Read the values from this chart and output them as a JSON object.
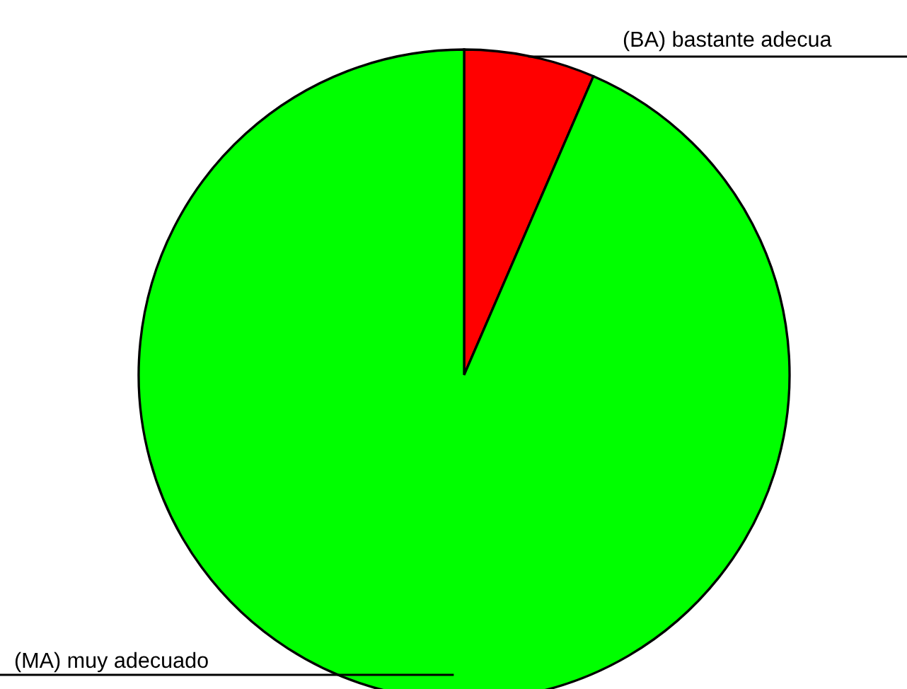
{
  "chart_data": {
    "type": "pie",
    "categories": [
      "(BA) bastante adecua",
      "(MA) muy adecuado"
    ],
    "values": [
      6.5,
      93.5
    ],
    "colors": [
      "#ff0000",
      "#00ff00"
    ]
  }
}
